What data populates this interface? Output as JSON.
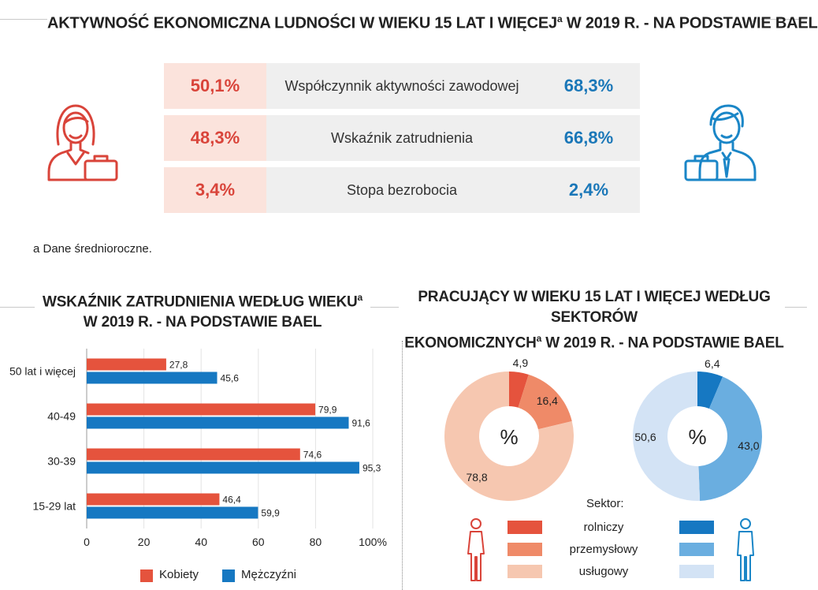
{
  "header": {
    "title": "AKTYWNOŚĆ EKONOMICZNA LUDNOŚCI W WIEKU 15 LAT I WIĘCEJ",
    "title_sup": "a",
    "title_end": "W 2019 R. - NA PODSTAWIE BAEL"
  },
  "indicators": [
    {
      "label": "Współczynnik aktywności zawodowej",
      "women": "50,1%",
      "men": "68,3%"
    },
    {
      "label": "Wskaźnik zatrudnienia",
      "women": "48,3%",
      "men": "66,8%"
    },
    {
      "label": "Stopa bezrobocia",
      "women": "3,4%",
      "men": "2,4%"
    }
  ],
  "footnote": "a Dane średnioroczne.",
  "employment_chart": {
    "title_line1": "WSKAŹNIK ZATRUDNIENIA WEDŁUG WIEKU",
    "title_sup": "a",
    "title_line2": "W 2019 R. - NA PODSTAWIE BAEL"
  },
  "sectors_chart": {
    "title_line1": "PRACUJĄCY W WIEKU 15 LAT I WIĘCEJ WEDŁUG SEKTORÓW",
    "title_line2a": "EKONOMICZNYCH",
    "title_sup": "a",
    "title_line2b": "W 2019 R. - NA PODSTAWIE BAEL",
    "center_symbol": "%",
    "legend_title": "Sektor:"
  },
  "colors": {
    "women_dark": "#e5533d",
    "women_mid": "#ef8a68",
    "women_light": "#f6c7b0",
    "men_dark": "#1678c2",
    "men_mid": "#6aaee0",
    "men_light": "#d3e3f5",
    "women_icon": "#d9443a",
    "men_icon": "#1a86c7"
  },
  "chart_data": [
    {
      "type": "bar",
      "orientation": "horizontal",
      "categories": [
        "50 lat i więcej",
        "40-49",
        "30-39",
        "15-29 lat"
      ],
      "series": [
        {
          "name": "Kobiety",
          "values": [
            27.8,
            79.9,
            74.6,
            46.4
          ],
          "labels": [
            "27,8",
            "79,9",
            "74,6",
            "46,4"
          ]
        },
        {
          "name": "Mężczyźni",
          "values": [
            45.6,
            91.6,
            95.3,
            59.9
          ],
          "labels": [
            "45,6",
            "91,6",
            "95,3",
            "59,9"
          ]
        }
      ],
      "xlim": [
        0,
        100
      ],
      "xticks": [
        "0",
        "20",
        "40",
        "60",
        "80",
        "100%"
      ],
      "grid": true,
      "legend": "bottom"
    },
    {
      "type": "pie",
      "name": "Kobiety",
      "donut": true,
      "categories": [
        "rolniczy",
        "przemysłowy",
        "usługowy"
      ],
      "values": [
        4.9,
        16.4,
        78.8
      ],
      "labels": [
        "4,9",
        "16,4",
        "78,8"
      ]
    },
    {
      "type": "pie",
      "name": "Mężczyźni",
      "donut": true,
      "categories": [
        "rolniczy",
        "przemysłowy",
        "usługowy"
      ],
      "values": [
        6.4,
        43.0,
        50.6
      ],
      "labels": [
        "6,4",
        "43,0",
        "50,6"
      ]
    }
  ]
}
